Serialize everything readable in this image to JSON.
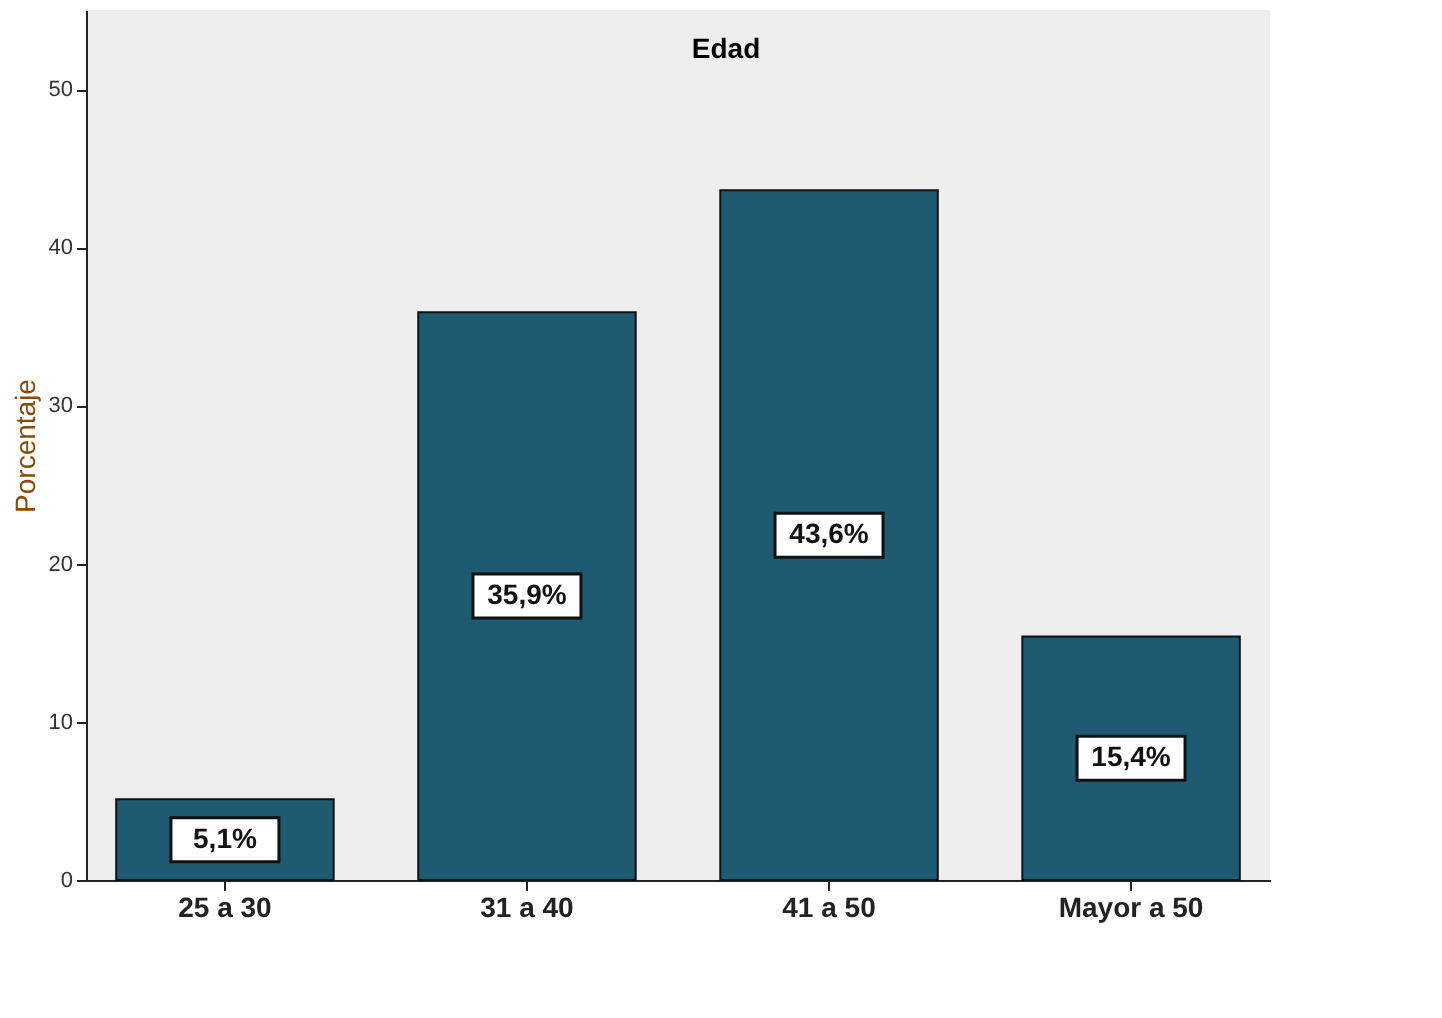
{
  "chart_data": {
    "type": "bar",
    "title": "Edad",
    "ylabel": "Porcentaje",
    "categories": [
      "25 a 30",
      "31 a 40",
      "41 a 50",
      "Mayor a 50"
    ],
    "values": [
      5.1,
      35.9,
      43.6,
      15.4
    ],
    "value_labels": [
      "5,1%",
      "35,9%",
      "43,6%",
      "15,4%"
    ],
    "color": "#1e5b72",
    "ylim": [
      0,
      55
    ],
    "yticks": [
      0,
      10,
      20,
      30,
      40,
      50
    ],
    "grid": false
  }
}
